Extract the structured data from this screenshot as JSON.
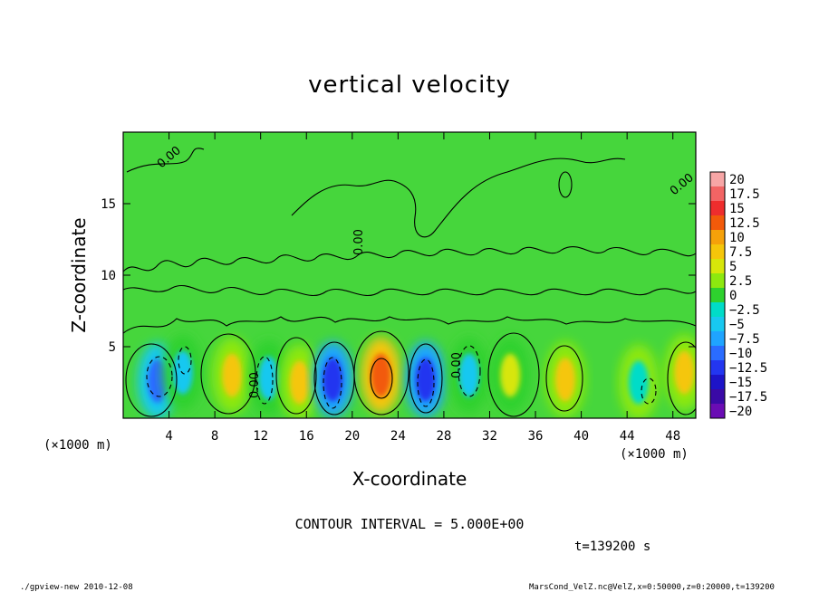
{
  "chart_data": {
    "type": "heatmap",
    "title": "vertical velocity",
    "xlabel": "X-coordinate",
    "ylabel": "Z-coordinate",
    "x_unit_label": "(×1000 m)",
    "z_unit_label": "(×1000 m)",
    "xlim": [
      0,
      50
    ],
    "ylim": [
      0,
      20
    ],
    "x_ticks": [
      "4",
      "8",
      "12",
      "16",
      "20",
      "24",
      "28",
      "32",
      "36",
      "40",
      "44",
      "48"
    ],
    "y_ticks": [
      "5",
      "10",
      "15"
    ],
    "colorbar_labels": [
      "20",
      "17.5",
      "15",
      "12.5",
      "10",
      "7.5",
      "5",
      "2.5",
      "0",
      "−2.5",
      "−5",
      "−7.5",
      "−10",
      "−12.5",
      "−15",
      "−17.5",
      "−20"
    ],
    "colorbar_colors": [
      "#f7a6a6",
      "#f26464",
      "#ee2d2d",
      "#f25a0a",
      "#f5a10a",
      "#f5c60a",
      "#d7e60a",
      "#8de80f",
      "#2ed12e",
      "#00dcc8",
      "#18c8f0",
      "#1fa4ff",
      "#2a6cff",
      "#2336f0",
      "#1d14c8",
      "#3a0aa6",
      "#6a0cb4"
    ],
    "contour_interval_text": "CONTOUR INTERVAL = 5.000E+00",
    "contour_label": "0.00",
    "time_text": "t=139200 s",
    "cells": [
      {
        "x": 3.0,
        "z": 2.6,
        "value": -10
      },
      {
        "x": 5.2,
        "z": 3.2,
        "value": -5
      },
      {
        "x": 9.5,
        "z": 3.0,
        "value": 7.5
      },
      {
        "x": 12.7,
        "z": 2.8,
        "value": -5
      },
      {
        "x": 15.4,
        "z": 2.5,
        "value": 7.5
      },
      {
        "x": 18.3,
        "z": 2.7,
        "value": -12.5
      },
      {
        "x": 22.5,
        "z": 3.0,
        "value": 12.5
      },
      {
        "x": 26.4,
        "z": 2.7,
        "value": -12.5
      },
      {
        "x": 30.2,
        "z": 3.0,
        "value": -5
      },
      {
        "x": 33.8,
        "z": 3.0,
        "value": 5
      },
      {
        "x": 38.6,
        "z": 2.7,
        "value": 7.5
      },
      {
        "x": 45.0,
        "z": 2.5,
        "value": -2.5
      },
      {
        "x": 49.0,
        "z": 3.2,
        "value": 7.5
      }
    ]
  },
  "footer": {
    "left": "./gpview-new  2010-12-08",
    "right": "MarsCond_VelZ.nc@VelZ,x=0:50000,z=0:20000,t=139200"
  }
}
